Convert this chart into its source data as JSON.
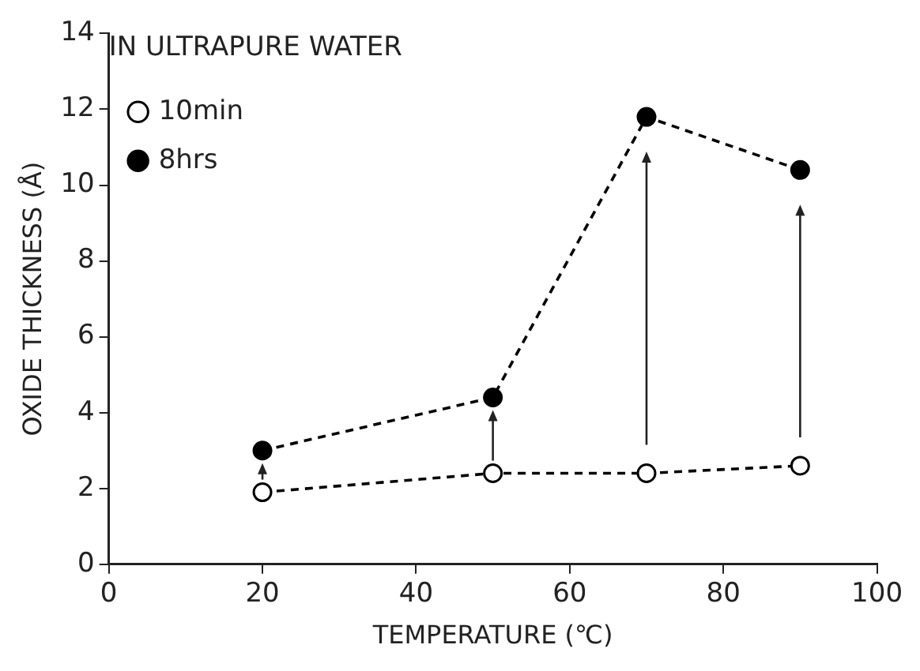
{
  "chart_data": {
    "type": "line",
    "xlabel": "TEMPERATURE (℃)",
    "ylabel": "OXIDE THICKNESS (Å)",
    "legend_title": "IN ULTRAPURE WATER",
    "x": [
      20,
      50,
      70,
      90
    ],
    "series": [
      {
        "name": "10min",
        "color": "#000000",
        "values": [
          1.9,
          2.4,
          2.4,
          2.6
        ]
      },
      {
        "name": "8hrs",
        "color": "#000000",
        "values": [
          3.0,
          4.4,
          11.8,
          10.4
        ]
      }
    ],
    "xlim": [
      0,
      100
    ],
    "xticks": [
      0,
      20,
      40,
      60,
      80,
      100
    ],
    "ylim": [
      0,
      14
    ],
    "yticks": [
      0,
      2,
      4,
      6,
      8,
      10,
      12,
      14
    ],
    "grid": false,
    "legend": "top left",
    "marker": "circle",
    "line_style": "dashed"
  }
}
